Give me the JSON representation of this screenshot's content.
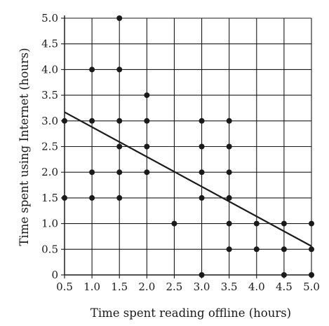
{
  "chart_data": {
    "type": "scatter",
    "xlabel": "Time spent reading offline (hours)",
    "ylabel": "Time spent using Internet (hours)",
    "xlim": [
      0.5,
      5.0
    ],
    "ylim": [
      0,
      5.0
    ],
    "grid": true,
    "x_ticks": [
      "0.5",
      "1.0",
      "1.5",
      "2.0",
      "2.5",
      "3.0",
      "3.5",
      "4.0",
      "4.5",
      "5.0"
    ],
    "y_ticks": [
      "0",
      "0.5",
      "1.0",
      "1.5",
      "2.0",
      "2.5",
      "3.0",
      "3.5",
      "4.0",
      "4.5",
      "5.0"
    ],
    "points": [
      {
        "x": 0.5,
        "y": 3.0
      },
      {
        "x": 0.5,
        "y": 1.5
      },
      {
        "x": 1.0,
        "y": 4.0
      },
      {
        "x": 1.0,
        "y": 3.0
      },
      {
        "x": 1.0,
        "y": 2.0
      },
      {
        "x": 1.0,
        "y": 1.5
      },
      {
        "x": 1.5,
        "y": 5.0
      },
      {
        "x": 1.5,
        "y": 4.0
      },
      {
        "x": 1.5,
        "y": 3.0
      },
      {
        "x": 1.5,
        "y": 2.5
      },
      {
        "x": 1.5,
        "y": 2.0
      },
      {
        "x": 1.5,
        "y": 1.5
      },
      {
        "x": 2.0,
        "y": 3.5
      },
      {
        "x": 2.0,
        "y": 3.0
      },
      {
        "x": 2.0,
        "y": 2.5
      },
      {
        "x": 2.0,
        "y": 2.0
      },
      {
        "x": 2.5,
        "y": 1.0
      },
      {
        "x": 3.0,
        "y": 3.0
      },
      {
        "x": 3.0,
        "y": 2.5
      },
      {
        "x": 3.0,
        "y": 2.0
      },
      {
        "x": 3.0,
        "y": 1.5
      },
      {
        "x": 3.0,
        "y": 0
      },
      {
        "x": 3.5,
        "y": 3.0
      },
      {
        "x": 3.5,
        "y": 2.5
      },
      {
        "x": 3.5,
        "y": 2.0
      },
      {
        "x": 3.5,
        "y": 1.5
      },
      {
        "x": 3.5,
        "y": 1.0
      },
      {
        "x": 3.5,
        "y": 0.5
      },
      {
        "x": 4.0,
        "y": 1.0
      },
      {
        "x": 4.0,
        "y": 0.5
      },
      {
        "x": 4.5,
        "y": 1.0
      },
      {
        "x": 4.5,
        "y": 0.5
      },
      {
        "x": 4.5,
        "y": 0
      },
      {
        "x": 5.0,
        "y": 1.0
      },
      {
        "x": 5.0,
        "y": 0.5
      },
      {
        "x": 5.0,
        "y": 0
      }
    ],
    "trend_line": [
      {
        "x": 0.5,
        "y": 3.17
      },
      {
        "x": 5.0,
        "y": 0.56
      }
    ],
    "colors": {
      "points": "#1a1a1a",
      "line": "#1a1a1a",
      "grid": "#1a1a1a"
    }
  }
}
